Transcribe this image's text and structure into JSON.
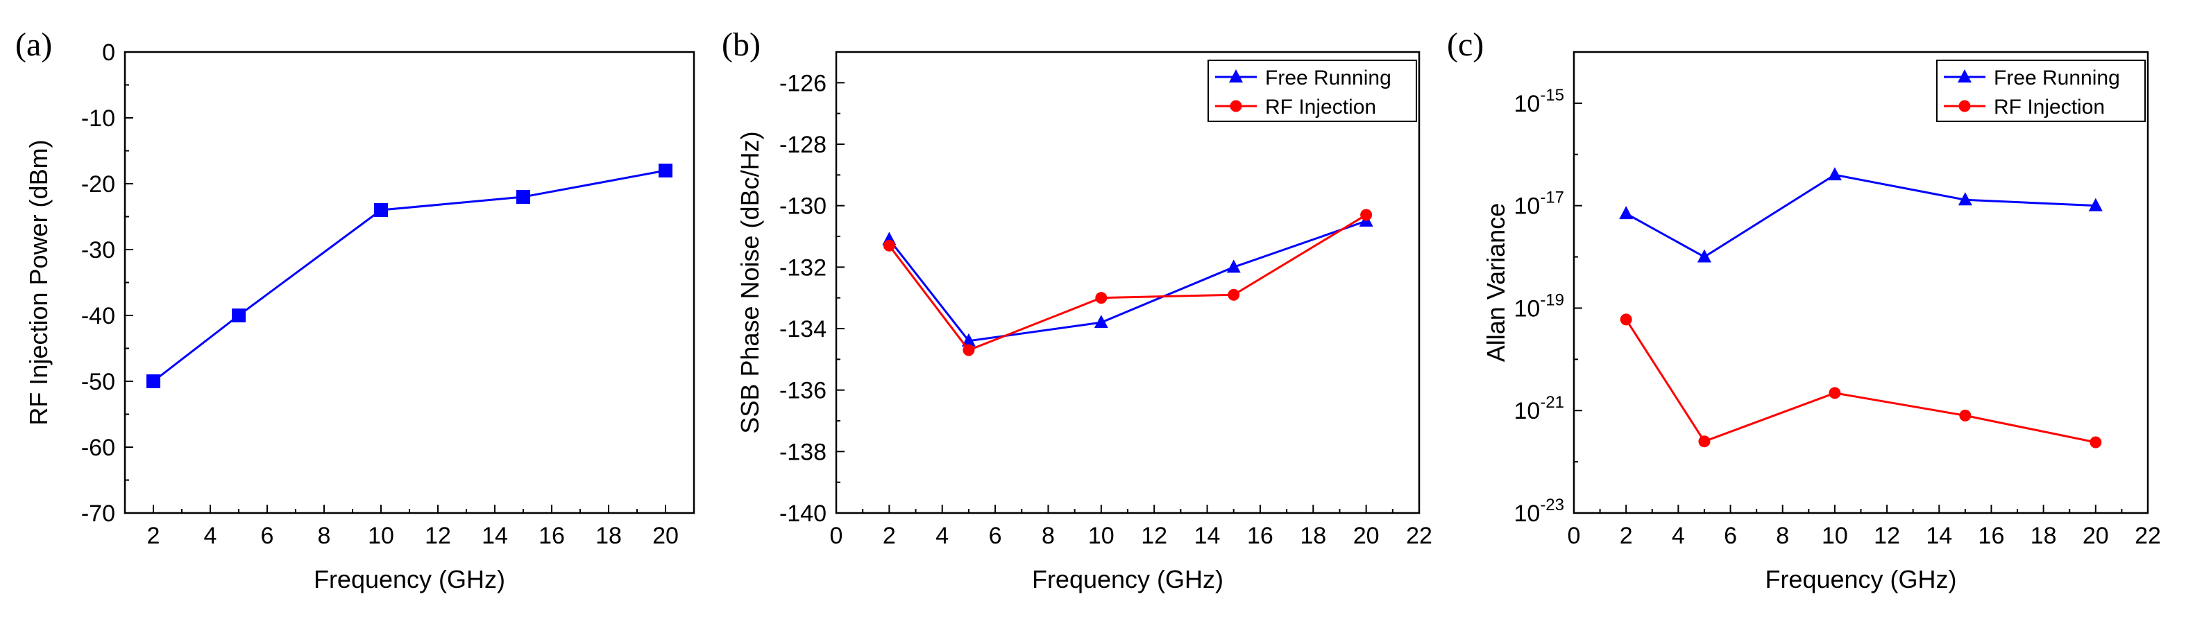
{
  "chart_data": [
    {
      "type": "line",
      "panel_label": "(a)",
      "xlabel": "Frequency (GHz)",
      "ylabel": "RF Injection Power (dBm)",
      "xlim": [
        1,
        21
      ],
      "ylim": [
        -70,
        0
      ],
      "yscale": "linear",
      "x_ticks": [
        2,
        4,
        6,
        8,
        10,
        12,
        14,
        16,
        18,
        20
      ],
      "y_ticks": [
        0,
        -10,
        -20,
        -30,
        -40,
        -50,
        -60,
        -70
      ],
      "legend": null,
      "series": [
        {
          "name": "RF Injection Power",
          "color": "#0000ff",
          "marker": "square",
          "x": [
            2,
            5,
            10,
            15,
            20
          ],
          "values": [
            -50,
            -40,
            -24,
            -22,
            -18
          ]
        }
      ]
    },
    {
      "type": "line",
      "panel_label": "(b)",
      "xlabel": "Frequency (GHz)",
      "ylabel": "SSB Phase Noise (dBc/Hz)",
      "xlim": [
        0,
        22
      ],
      "ylim": [
        -140,
        -125
      ],
      "yscale": "linear",
      "x_ticks": [
        0,
        2,
        4,
        6,
        8,
        10,
        12,
        14,
        16,
        18,
        20,
        22
      ],
      "y_ticks": [
        -126,
        -128,
        -130,
        -132,
        -134,
        -136,
        -138,
        -140
      ],
      "legend": "top-right",
      "series": [
        {
          "name": "Free Running",
          "color": "#0000ff",
          "marker": "triangle",
          "x": [
            2,
            5,
            10,
            15,
            20
          ],
          "values": [
            -131.1,
            -134.4,
            -133.8,
            -132.0,
            -130.5
          ]
        },
        {
          "name": "RF Injection",
          "color": "#ff0000",
          "marker": "circle",
          "x": [
            2,
            5,
            10,
            15,
            20
          ],
          "values": [
            -131.3,
            -134.7,
            -133.0,
            -132.9,
            -130.3
          ]
        }
      ]
    },
    {
      "type": "line",
      "panel_label": "(c)",
      "xlabel": "Frequency (GHz)",
      "ylabel": "Allan Variance",
      "xlim": [
        0,
        22
      ],
      "ylim": [
        1e-23,
        1e-14
      ],
      "yscale": "log",
      "x_ticks": [
        0,
        2,
        4,
        6,
        8,
        10,
        12,
        14,
        16,
        18,
        20,
        22
      ],
      "y_ticks": [
        {
          "base": "10",
          "exp": "-15",
          "value": 1e-15
        },
        {
          "base": "10",
          "exp": "-17",
          "value": 1e-17
        },
        {
          "base": "10",
          "exp": "-19",
          "value": 1e-19
        },
        {
          "base": "10",
          "exp": "-21",
          "value": 1e-21
        },
        {
          "base": "10",
          "exp": "-23",
          "value": 1e-23
        }
      ],
      "legend": "top-right",
      "series": [
        {
          "name": "Free Running",
          "color": "#0000ff",
          "marker": "triangle",
          "x": [
            2,
            5,
            10,
            15,
            20
          ],
          "values": [
            7e-18,
            1e-18,
            4e-17,
            1.3e-17,
            1e-17
          ]
        },
        {
          "name": "RF Injection",
          "color": "#ff0000",
          "marker": "circle",
          "x": [
            2,
            5,
            10,
            15,
            20
          ],
          "values": [
            6e-20,
            2.5e-22,
            2.2e-21,
            8e-22,
            2.4e-22
          ]
        }
      ]
    }
  ]
}
